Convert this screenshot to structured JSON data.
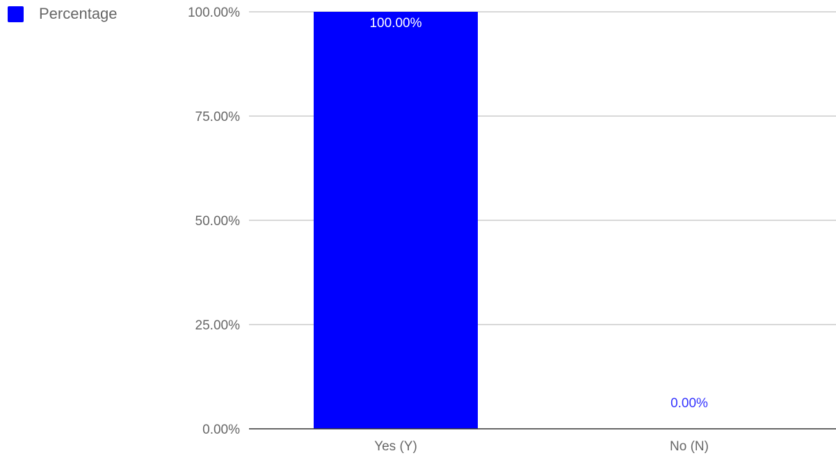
{
  "chart_data": {
    "type": "bar",
    "categories": [
      "Yes (Y)",
      "No (N)"
    ],
    "series": [
      {
        "name": "Percentage",
        "values": [
          100,
          0
        ],
        "data_labels": [
          "100.00%",
          "0.00%"
        ],
        "color": "#0000ff"
      }
    ],
    "ylim": [
      0,
      100
    ],
    "y_ticks": [
      0,
      25,
      50,
      75,
      100
    ],
    "y_tick_labels": [
      "0.00%",
      "25.00%",
      "50.00%",
      "75.00%",
      "100.00%"
    ],
    "grid": true,
    "legend_position": "top-left",
    "colors": {
      "bar": "#0000ff",
      "label_inside": "#ffffff",
      "label_outside": "#3333ff",
      "gridline": "#cccccc",
      "baseline": "#333333",
      "text": "#666666"
    }
  }
}
